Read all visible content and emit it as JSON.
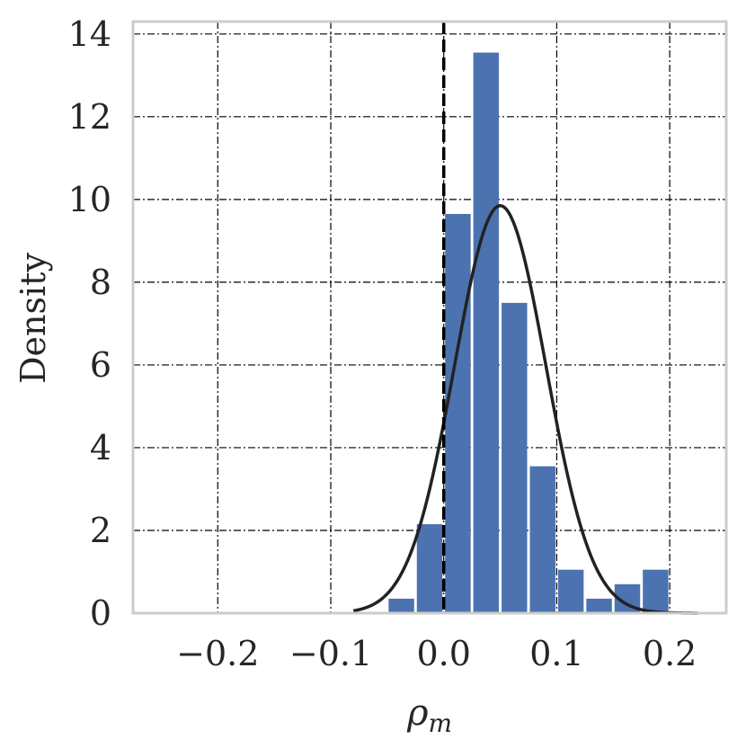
{
  "chart_data": {
    "type": "bar",
    "xlabel": "ρ",
    "xlabel_sub": "m",
    "ylabel": "Density",
    "xlim": [
      -0.275,
      0.25
    ],
    "ylim": [
      0,
      14.3
    ],
    "xticks": [
      {
        "value": -0.2,
        "label": "−0.2"
      },
      {
        "value": -0.1,
        "label": "−0.1"
      },
      {
        "value": 0.0,
        "label": "0.0"
      },
      {
        "value": 0.1,
        "label": "0.1"
      },
      {
        "value": 0.2,
        "label": "0.2"
      }
    ],
    "yticks": [
      {
        "value": 0,
        "label": "0"
      },
      {
        "value": 2,
        "label": "2"
      },
      {
        "value": 4,
        "label": "4"
      },
      {
        "value": 6,
        "label": "6"
      },
      {
        "value": 8,
        "label": "8"
      },
      {
        "value": 10,
        "label": "10"
      },
      {
        "value": 12,
        "label": "12"
      },
      {
        "value": 14,
        "label": "14"
      }
    ],
    "grid": true,
    "bins": [
      {
        "x0": -0.05,
        "x1": -0.025,
        "density": 0.35
      },
      {
        "x0": -0.025,
        "x1": 0.0,
        "density": 2.15
      },
      {
        "x0": 0.0,
        "x1": 0.025,
        "density": 9.65
      },
      {
        "x0": 0.025,
        "x1": 0.05,
        "density": 13.55
      },
      {
        "x0": 0.05,
        "x1": 0.075,
        "density": 7.5
      },
      {
        "x0": 0.075,
        "x1": 0.1,
        "density": 3.55
      },
      {
        "x0": 0.1,
        "x1": 0.125,
        "density": 1.05
      },
      {
        "x0": 0.125,
        "x1": 0.15,
        "density": 0.35
      },
      {
        "x0": 0.15,
        "x1": 0.175,
        "density": 0.7
      },
      {
        "x0": 0.175,
        "x1": 0.2,
        "density": 1.05
      }
    ],
    "normal_fit": {
      "mean": 0.05,
      "std": 0.0405,
      "x_range": [
        -0.08,
        0.225
      ]
    },
    "reference_line_x": 0.0,
    "colors": {
      "bar": "#4c72b0",
      "curve": "#222222",
      "reference_line": "#000000",
      "grid": "#000000",
      "frame": "#cccccc"
    }
  }
}
